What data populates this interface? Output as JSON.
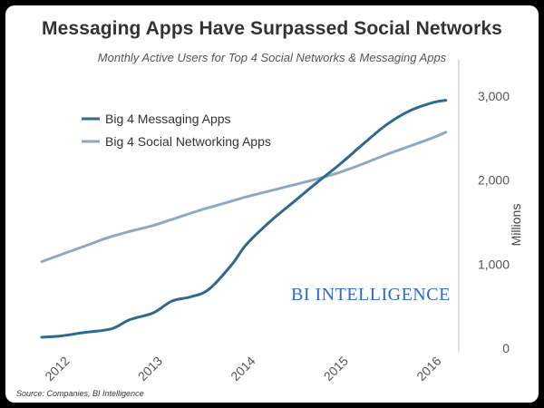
{
  "chart_data": {
    "type": "line",
    "title": "Messaging Apps Have Surpassed Social Networks",
    "subtitle": "Monthly Active Users for Top 4 Social Networks & Messaging Apps",
    "xlabel": "",
    "ylabel": "Millions",
    "x_ticks": [
      "2012",
      "2013",
      "2014",
      "2015",
      "2016"
    ],
    "y_ticks": [
      "0",
      "1,000",
      "2,000",
      "3,000"
    ],
    "xlim": [
      2011.8,
      2016.25
    ],
    "ylim": [
      0,
      3000
    ],
    "grid": false,
    "legend": "top-left",
    "series": [
      {
        "name": "Big 4 Messaging Apps",
        "color": "#2e6a8e",
        "x": [
          2011.8,
          2012.0,
          2012.25,
          2012.55,
          2012.75,
          2013.0,
          2013.2,
          2013.4,
          2013.6,
          2013.85,
          2014.0,
          2014.25,
          2014.5,
          2014.75,
          2015.0,
          2015.25,
          2015.5,
          2015.75,
          2016.0,
          2016.15
        ],
        "values": [
          130,
          145,
          185,
          230,
          340,
          420,
          560,
          610,
          700,
          1000,
          1230,
          1500,
          1730,
          1960,
          2180,
          2420,
          2650,
          2820,
          2920,
          2950
        ]
      },
      {
        "name": "Big 4 Social Networking Apps",
        "color": "#8fa9c2",
        "x": [
          2011.8,
          2012.0,
          2012.25,
          2012.5,
          2012.75,
          2013.0,
          2013.25,
          2013.5,
          2013.75,
          2014.0,
          2014.25,
          2014.5,
          2014.75,
          2015.0,
          2015.25,
          2015.5,
          2015.75,
          2016.0,
          2016.15
        ],
        "values": [
          1030,
          1110,
          1210,
          1310,
          1390,
          1460,
          1550,
          1640,
          1720,
          1800,
          1870,
          1940,
          2010,
          2090,
          2190,
          2300,
          2400,
          2500,
          2570
        ]
      }
    ],
    "annotations": [
      "BI INTELLIGENCE"
    ]
  },
  "source": "Source: Companies, BI Intelligence"
}
